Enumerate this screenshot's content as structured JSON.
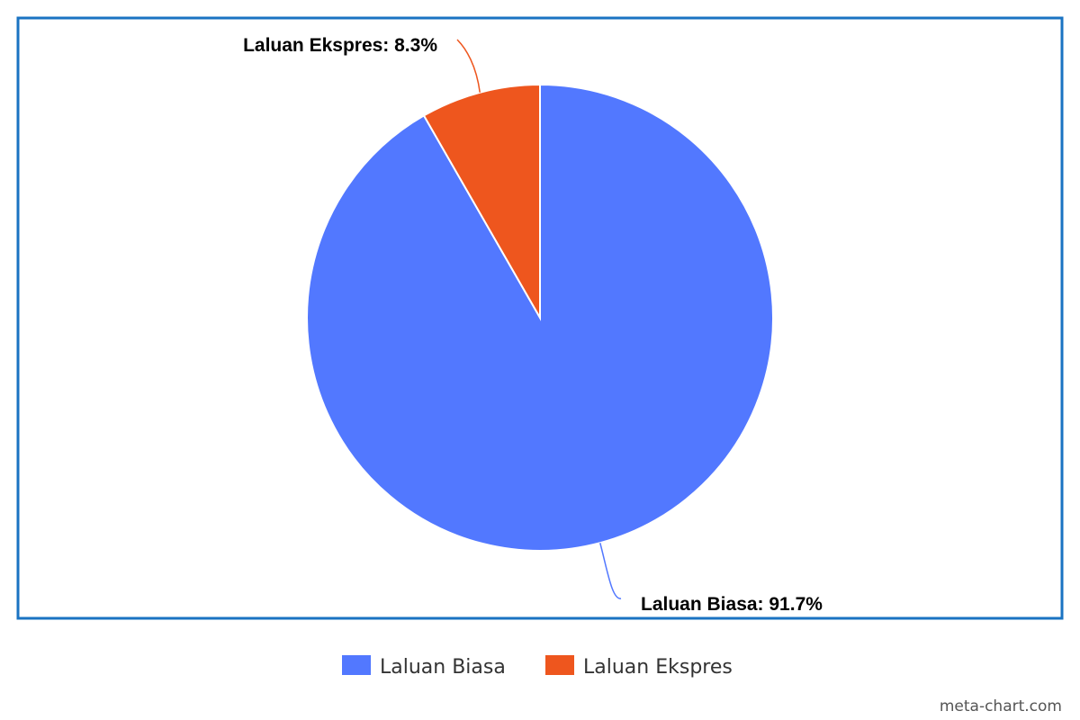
{
  "chart_data": {
    "type": "pie",
    "title": "",
    "slices": [
      {
        "name": "Laluan Biasa",
        "value": 91.7,
        "label": "Laluan Biasa: 91.7%",
        "color": "#5278FF"
      },
      {
        "name": "Laluan Ekspres",
        "value": 8.3,
        "label": "Laluan Ekspres: 8.3%",
        "color": "#EE561E"
      }
    ],
    "legend_position": "bottom",
    "border_color": "#1A73C2"
  },
  "watermark": "meta-chart.com"
}
